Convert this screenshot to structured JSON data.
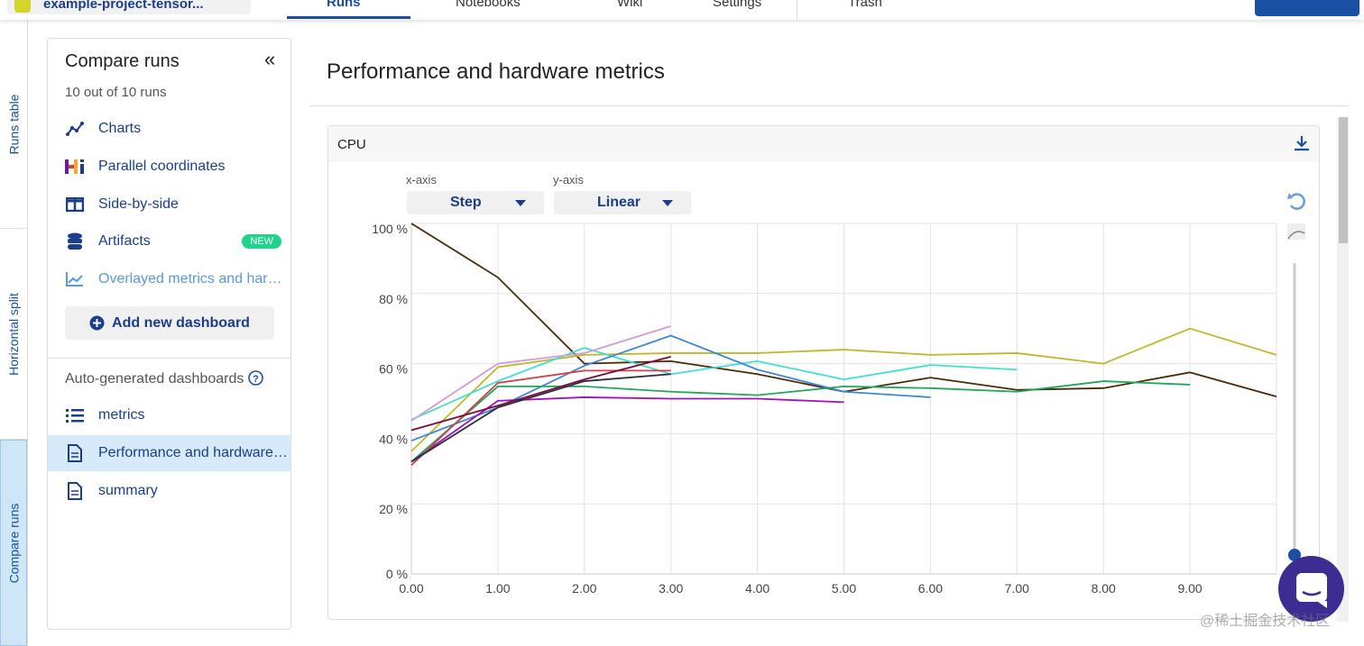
{
  "topbar": {
    "project": "example-project-tensor...",
    "tabs": [
      "Runs",
      "Notebooks",
      "Wiki",
      "Settings",
      "Trash"
    ]
  },
  "vtabs": [
    "Runs table",
    "Horizontal split",
    "Compare runs"
  ],
  "sidebar": {
    "title": "Compare runs",
    "count": "10 out of 10 runs",
    "items": [
      {
        "label": "Charts",
        "icon": "line-chart-icon"
      },
      {
        "label": "Parallel coordinates",
        "icon": "hiplot-icon"
      },
      {
        "label": "Side-by-side",
        "icon": "columns-icon"
      },
      {
        "label": "Artifacts",
        "icon": "database-icon",
        "badge": "NEW"
      },
      {
        "label": "Overlayed metrics and har…",
        "icon": "area-chart-icon"
      }
    ],
    "add_button": "Add new dashboard",
    "auto_label": "Auto-generated dashboards",
    "dashboards": [
      {
        "label": "metrics",
        "icon": "list-icon"
      },
      {
        "label": "Performance and hardware…",
        "icon": "document-icon",
        "selected": true
      },
      {
        "label": "summary",
        "icon": "document-icon"
      }
    ]
  },
  "main": {
    "title": "Performance and hardware metrics"
  },
  "card": {
    "title": "CPU",
    "xaxis_label": "x-axis",
    "xaxis_value": "Step",
    "yaxis_label": "y-axis",
    "yaxis_value": "Linear"
  },
  "watermark": "@稀土掘金技术社区",
  "chart_data": {
    "type": "line",
    "xlim": [
      0,
      10
    ],
    "ylim": [
      0,
      100
    ],
    "x_ticks": [
      "0.00",
      "1.00",
      "2.00",
      "3.00",
      "4.00",
      "5.00",
      "6.00",
      "7.00",
      "8.00",
      "9.00"
    ],
    "y_ticks": [
      "0 %",
      "20 %",
      "40 %",
      "60 %",
      "80 %",
      "100 %"
    ],
    "grid": true,
    "series": [
      {
        "color": "#4a2a05",
        "values": [
          100,
          84.6,
          60,
          60.7,
          57,
          52,
          56,
          52.5,
          53,
          57.5,
          50.6
        ]
      },
      {
        "color": "#c0b82a",
        "values": [
          35,
          59,
          62.5,
          63,
          63,
          64,
          62.5,
          63,
          60,
          70,
          62.5
        ]
      },
      {
        "color": "#3ee0d0",
        "values": [
          44,
          55,
          64.5,
          57,
          60.7,
          55.5,
          59.6,
          58.3
        ]
      },
      {
        "color": "#3f86d6",
        "values": [
          38,
          47.5,
          59.4,
          68,
          58.3,
          52,
          50.4
        ]
      },
      {
        "color": "#1fa85a",
        "values": [
          32,
          53.5,
          53.5,
          52,
          51,
          53.5,
          53,
          52,
          55,
          54
        ]
      },
      {
        "color": "#a010c0",
        "values": [
          32,
          49.4,
          50.4,
          50,
          50,
          49
        ]
      },
      {
        "color": "#d49ad8",
        "values": [
          43.7,
          60,
          63,
          70.7
        ]
      },
      {
        "color": "#d0404a",
        "values": [
          31,
          54.5,
          58,
          58
        ]
      },
      {
        "color": "#7a0a3a",
        "values": [
          41,
          48,
          55.5,
          62
        ]
      },
      {
        "color": "#2a3040",
        "values": [
          32,
          47.5,
          55,
          57
        ]
      }
    ]
  }
}
